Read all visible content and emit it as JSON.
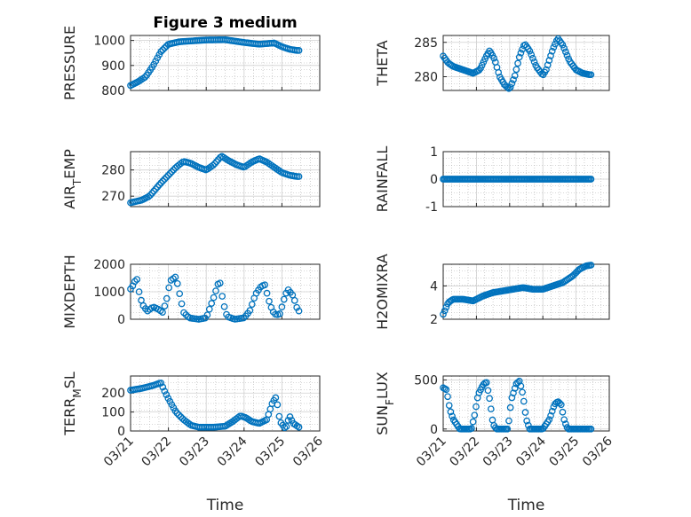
{
  "colors": {
    "marker": "#0072bd",
    "axis": "#262626",
    "grid": "#b0b0b0"
  },
  "chart_data": [
    {
      "type": "scatter",
      "id": "pressure",
      "title": "Figure 3 medium",
      "ylabel": "PRESSURE",
      "ylim": [
        800,
        1020
      ],
      "yticks": [
        800,
        900,
        1000
      ],
      "ytick_labels": [
        "800",
        "900",
        "1000"
      ],
      "xlim": [
        0,
        5
      ],
      "xticks": [
        0,
        1,
        2,
        3,
        4,
        5
      ],
      "xtick_labels": [
        "03/21",
        "03/22",
        "03/23",
        "03/24",
        "03/25",
        "03/26"
      ],
      "xlabel": "",
      "show_xtick_labels": false,
      "keyframes": [
        [
          0.0,
          820
        ],
        [
          0.2,
          835
        ],
        [
          0.4,
          855
        ],
        [
          0.6,
          900
        ],
        [
          0.8,
          955
        ],
        [
          1.0,
          985
        ],
        [
          1.3,
          995
        ],
        [
          1.6,
          998
        ],
        [
          2.0,
          1002
        ],
        [
          2.5,
          1003
        ],
        [
          3.0,
          992
        ],
        [
          3.4,
          985
        ],
        [
          3.8,
          990
        ],
        [
          4.0,
          975
        ],
        [
          4.2,
          965
        ],
        [
          4.4,
          960
        ]
      ],
      "series": [
        {
          "name": "PRESSURE",
          "x_range": [
            0,
            4.45
          ],
          "n": 95
        }
      ]
    },
    {
      "type": "scatter",
      "id": "theta",
      "title": "",
      "ylabel": "THETA",
      "ylim": [
        278,
        286
      ],
      "yticks": [
        280,
        285
      ],
      "ytick_labels": [
        "280",
        "285"
      ],
      "xlim": [
        0,
        5
      ],
      "xticks": [
        0,
        1,
        2,
        3,
        4,
        5
      ],
      "xtick_labels": [
        "03/21",
        "03/22",
        "03/23",
        "03/24",
        "03/25",
        "03/26"
      ],
      "xlabel": "",
      "show_xtick_labels": false,
      "keyframes": [
        [
          0.0,
          283
        ],
        [
          0.15,
          282
        ],
        [
          0.3,
          281.5
        ],
        [
          0.6,
          281
        ],
        [
          0.9,
          280.5
        ],
        [
          1.1,
          281
        ],
        [
          1.3,
          283
        ],
        [
          1.4,
          283.8
        ],
        [
          1.55,
          282.5
        ],
        [
          1.7,
          280
        ],
        [
          1.85,
          278.8
        ],
        [
          2.0,
          278.2
        ],
        [
          2.15,
          280
        ],
        [
          2.3,
          283
        ],
        [
          2.45,
          284.8
        ],
        [
          2.6,
          283.8
        ],
        [
          2.8,
          281.5
        ],
        [
          3.0,
          280.2
        ],
        [
          3.1,
          281
        ],
        [
          3.3,
          284
        ],
        [
          3.45,
          285.6
        ],
        [
          3.6,
          284.6
        ],
        [
          3.8,
          282.3
        ],
        [
          4.0,
          281
        ],
        [
          4.2,
          280.5
        ],
        [
          4.4,
          280.3
        ]
      ],
      "series": [
        {
          "name": "THETA",
          "x_range": [
            0,
            4.45
          ],
          "n": 100
        }
      ]
    },
    {
      "type": "scatter",
      "id": "air_temp",
      "title": "",
      "ylabel": "AIR_TEMP",
      "ylabel_main": "AIR",
      "ylabel_sub": "T",
      "ylabel_rest": "EMP",
      "ylim": [
        266,
        287
      ],
      "yticks": [
        270,
        280
      ],
      "ytick_labels": [
        "270",
        "280"
      ],
      "xlim": [
        0,
        5
      ],
      "xticks": [
        0,
        1,
        2,
        3,
        4,
        5
      ],
      "xtick_labels": [
        "03/21",
        "03/22",
        "03/23",
        "03/24",
        "03/25",
        "03/26"
      ],
      "xlabel": "",
      "show_xtick_labels": false,
      "keyframes": [
        [
          0.0,
          267.5
        ],
        [
          0.3,
          268.5
        ],
        [
          0.5,
          270
        ],
        [
          0.8,
          275
        ],
        [
          1.0,
          278
        ],
        [
          1.2,
          281
        ],
        [
          1.4,
          283.3
        ],
        [
          1.6,
          282.5
        ],
        [
          1.8,
          281
        ],
        [
          2.0,
          280
        ],
        [
          2.2,
          282
        ],
        [
          2.4,
          285.3
        ],
        [
          2.6,
          283.5
        ],
        [
          2.8,
          282
        ],
        [
          3.0,
          281
        ],
        [
          3.2,
          283
        ],
        [
          3.4,
          284.3
        ],
        [
          3.6,
          283
        ],
        [
          3.8,
          281
        ],
        [
          4.0,
          279
        ],
        [
          4.2,
          278
        ],
        [
          4.4,
          277.5
        ]
      ],
      "series": [
        {
          "name": "AIR_TEMP",
          "x_range": [
            0,
            4.45
          ],
          "n": 95
        }
      ]
    },
    {
      "type": "scatter",
      "id": "rainfall",
      "title": "",
      "ylabel": "RAINFALL",
      "ylim": [
        -1,
        1
      ],
      "yticks": [
        -1,
        0,
        1
      ],
      "ytick_labels": [
        "-1",
        "0",
        "1"
      ],
      "xlim": [
        0,
        5
      ],
      "xticks": [
        0,
        1,
        2,
        3,
        4,
        5
      ],
      "xtick_labels": [
        "03/21",
        "03/22",
        "03/23",
        "03/24",
        "03/25",
        "03/26"
      ],
      "xlabel": "",
      "show_xtick_labels": false,
      "keyframes": [
        [
          0.0,
          0
        ],
        [
          4.45,
          0
        ]
      ],
      "series": [
        {
          "name": "RAINFALL",
          "x_range": [
            0,
            4.45
          ],
          "n": 110
        }
      ]
    },
    {
      "type": "scatter",
      "id": "mixdepth",
      "title": "",
      "ylabel": "MIXDEPTH",
      "ylim": [
        0,
        2000
      ],
      "yticks": [
        0,
        1000,
        2000
      ],
      "ytick_labels": [
        "0",
        "1000",
        "2000"
      ],
      "xlim": [
        0,
        5
      ],
      "xticks": [
        0,
        1,
        2,
        3,
        4,
        5
      ],
      "xtick_labels": [
        "03/21",
        "03/22",
        "03/23",
        "03/24",
        "03/25",
        "03/26"
      ],
      "xlabel": "",
      "show_xtick_labels": false,
      "keyframes": [
        [
          0.0,
          1100
        ],
        [
          0.1,
          1300
        ],
        [
          0.15,
          1600
        ],
        [
          0.25,
          800
        ],
        [
          0.35,
          450
        ],
        [
          0.45,
          300
        ],
        [
          0.6,
          450
        ],
        [
          0.75,
          350
        ],
        [
          0.85,
          250
        ],
        [
          0.95,
          700
        ],
        [
          1.05,
          1400
        ],
        [
          1.2,
          1550
        ],
        [
          1.3,
          900
        ],
        [
          1.4,
          250
        ],
        [
          1.55,
          50
        ],
        [
          1.8,
          0
        ],
        [
          2.0,
          50
        ],
        [
          2.2,
          800
        ],
        [
          2.35,
          1450
        ],
        [
          2.45,
          600
        ],
        [
          2.55,
          100
        ],
        [
          2.75,
          0
        ],
        [
          3.0,
          50
        ],
        [
          3.15,
          300
        ],
        [
          3.3,
          900
        ],
        [
          3.45,
          1200
        ],
        [
          3.55,
          1250
        ],
        [
          3.65,
          700
        ],
        [
          3.75,
          300
        ],
        [
          3.85,
          150
        ],
        [
          3.95,
          200
        ],
        [
          4.05,
          700
        ],
        [
          4.15,
          1100
        ],
        [
          4.3,
          850
        ],
        [
          4.4,
          400
        ],
        [
          4.45,
          300
        ]
      ],
      "series": [
        {
          "name": "MIXDEPTH",
          "x_range": [
            0,
            4.45
          ],
          "n": 80
        }
      ]
    },
    {
      "type": "scatter",
      "id": "h2omixra",
      "title": "",
      "ylabel": "H2OMIXRA",
      "ylim": [
        2,
        5.3
      ],
      "yticks": [
        2,
        4
      ],
      "ytick_labels": [
        "2",
        "4"
      ],
      "xlim": [
        0,
        5
      ],
      "xticks": [
        0,
        1,
        2,
        3,
        4,
        5
      ],
      "xtick_labels": [
        "03/21",
        "03/22",
        "03/23",
        "03/24",
        "03/25",
        "03/26"
      ],
      "xlabel": "",
      "show_xtick_labels": false,
      "keyframes": [
        [
          0.0,
          2.3
        ],
        [
          0.15,
          3.0
        ],
        [
          0.3,
          3.2
        ],
        [
          0.6,
          3.2
        ],
        [
          0.9,
          3.1
        ],
        [
          1.2,
          3.4
        ],
        [
          1.5,
          3.6
        ],
        [
          1.8,
          3.7
        ],
        [
          2.1,
          3.8
        ],
        [
          2.4,
          3.9
        ],
        [
          2.7,
          3.8
        ],
        [
          3.0,
          3.8
        ],
        [
          3.3,
          4.0
        ],
        [
          3.6,
          4.2
        ],
        [
          3.9,
          4.6
        ],
        [
          4.1,
          5.0
        ],
        [
          4.3,
          5.2
        ],
        [
          4.45,
          5.25
        ]
      ],
      "series": [
        {
          "name": "H2OMIXRA",
          "x_range": [
            0,
            4.45
          ],
          "n": 100
        }
      ]
    },
    {
      "type": "scatter",
      "id": "terr_msl",
      "title": "",
      "ylabel": "TERR_MSL",
      "ylabel_main": "TERR",
      "ylabel_sub": "M",
      "ylabel_rest": "SL",
      "ylim": [
        0,
        290
      ],
      "yticks": [
        0,
        100,
        200
      ],
      "ytick_labels": [
        "0",
        "100",
        "200"
      ],
      "xlim": [
        0,
        5
      ],
      "xticks": [
        0,
        1,
        2,
        3,
        4,
        5
      ],
      "xtick_labels": [
        "03/21",
        "03/22",
        "03/23",
        "03/24",
        "03/25",
        "03/26"
      ],
      "xlabel": "Time",
      "show_xtick_labels": true,
      "keyframes": [
        [
          0.0,
          215
        ],
        [
          0.3,
          225
        ],
        [
          0.6,
          240
        ],
        [
          0.8,
          255
        ],
        [
          0.9,
          210
        ],
        [
          1.0,
          170
        ],
        [
          1.2,
          100
        ],
        [
          1.4,
          60
        ],
        [
          1.6,
          30
        ],
        [
          1.8,
          20
        ],
        [
          2.2,
          20
        ],
        [
          2.5,
          25
        ],
        [
          2.7,
          50
        ],
        [
          2.9,
          80
        ],
        [
          3.05,
          70
        ],
        [
          3.2,
          50
        ],
        [
          3.4,
          40
        ],
        [
          3.6,
          60
        ],
        [
          3.75,
          150
        ],
        [
          3.85,
          180
        ],
        [
          3.95,
          50
        ],
        [
          4.1,
          10
        ],
        [
          4.2,
          80
        ],
        [
          4.3,
          40
        ],
        [
          4.45,
          20
        ]
      ],
      "series": [
        {
          "name": "TERR_MSL",
          "x_range": [
            0,
            4.45
          ],
          "n": 95
        }
      ]
    },
    {
      "type": "scatter",
      "id": "sun_flux",
      "title": "",
      "ylabel": "SUN_FLUX",
      "ylabel_main": "SUN",
      "ylabel_sub": "F",
      "ylabel_rest": "LUX",
      "ylim": [
        -20,
        540
      ],
      "yticks": [
        0,
        500
      ],
      "ytick_labels": [
        "0",
        "500"
      ],
      "xlim": [
        0,
        5
      ],
      "xticks": [
        0,
        1,
        2,
        3,
        4,
        5
      ],
      "xtick_labels": [
        "03/21",
        "03/22",
        "03/23",
        "03/24",
        "03/25",
        "03/26"
      ],
      "xlabel": "Time",
      "show_xtick_labels": true,
      "keyframes": [
        [
          0.0,
          420
        ],
        [
          0.1,
          400
        ],
        [
          0.2,
          200
        ],
        [
          0.3,
          100
        ],
        [
          0.4,
          50
        ],
        [
          0.5,
          0
        ],
        [
          0.85,
          0
        ],
        [
          0.95,
          150
        ],
        [
          1.05,
          350
        ],
        [
          1.2,
          450
        ],
        [
          1.3,
          480
        ],
        [
          1.4,
          300
        ],
        [
          1.5,
          50
        ],
        [
          1.6,
          0
        ],
        [
          1.95,
          0
        ],
        [
          2.05,
          300
        ],
        [
          2.2,
          460
        ],
        [
          2.3,
          490
        ],
        [
          2.4,
          350
        ],
        [
          2.5,
          100
        ],
        [
          2.6,
          0
        ],
        [
          3.0,
          0
        ],
        [
          3.2,
          100
        ],
        [
          3.35,
          250
        ],
        [
          3.45,
          280
        ],
        [
          3.55,
          250
        ],
        [
          3.65,
          80
        ],
        [
          3.75,
          0
        ],
        [
          4.45,
          0
        ]
      ],
      "series": [
        {
          "name": "SUN_FLUX",
          "x_range": [
            0,
            4.45
          ],
          "n": 100
        }
      ]
    }
  ]
}
